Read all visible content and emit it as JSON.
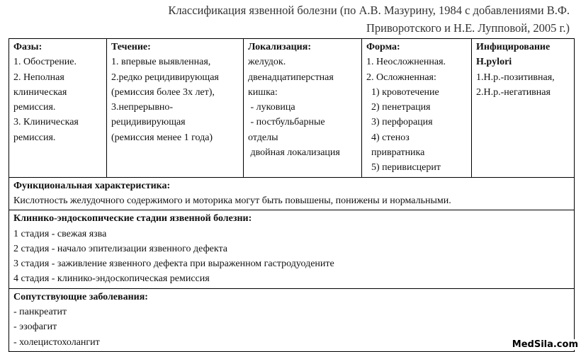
{
  "header": {
    "title": [
      "Классификация язвенной болезни (по А.В. Мазурину, 1984 с добавлениями В.Ф.",
      "Приворотского и Н.Е. Лупповой, 2005 г.)"
    ]
  },
  "table": {
    "columns": [
      {
        "heading": "Фазы:",
        "lines": [
          "1. Обострение.",
          "2. Неполная",
          "клиническая",
          "ремиссия.",
          "3. Клиническая",
          "ремиссия."
        ]
      },
      {
        "heading": "Течение:",
        "lines": [
          "1. впервые выявленная,",
          "2.редко рецидивирующая",
          "(ремиссия более 3х лет),",
          "3.непрерывно-",
          "рецидивирующая",
          "(ремиссия менее 1 года)"
        ]
      },
      {
        "heading": "Локализация:",
        "lines": [
          "желудок.",
          "двенадцатиперстная",
          "кишка:",
          " - луковица",
          " - постбульбарные",
          "отделы",
          " двойная локализация"
        ]
      },
      {
        "heading": "Форма:",
        "lines": [
          "1. Неосложненная.",
          "2. Осложненная:",
          "  1) кровотечение",
          "  2) пенетрация",
          "  3) перфорация",
          "  4) стеноз",
          "  привратника",
          "  5) перивисцерит"
        ]
      },
      {
        "heading": "Инфицирование H.pylori",
        "lines": [
          "1.Н.р.-позитивная,",
          "2.Н.р.-негативная"
        ]
      }
    ],
    "sections": [
      {
        "heading": "Функциональная характеристика:",
        "lines": [
          "Кислотность желудочного содержимого и моторика могут быть повышены, понижены и нормальными."
        ]
      },
      {
        "heading": "Клинико-эндоскопические стадии язвенной болезни:",
        "lines": [
          "1 стадия - свежая язва",
          "2 стадия - начало эпителизации язвенного дефекта",
          "3 стадия - заживление язвенного дефекта при выраженном гастродуодените",
          "4 стадия - клинико-эндоскопическая ремиссия"
        ]
      },
      {
        "heading": "Сопутствующие заболевания:",
        "lines": [
          "- панкреатит",
          "- эзофагит",
          "- холецистохолангит"
        ]
      }
    ]
  },
  "watermark": "MedSila.com"
}
